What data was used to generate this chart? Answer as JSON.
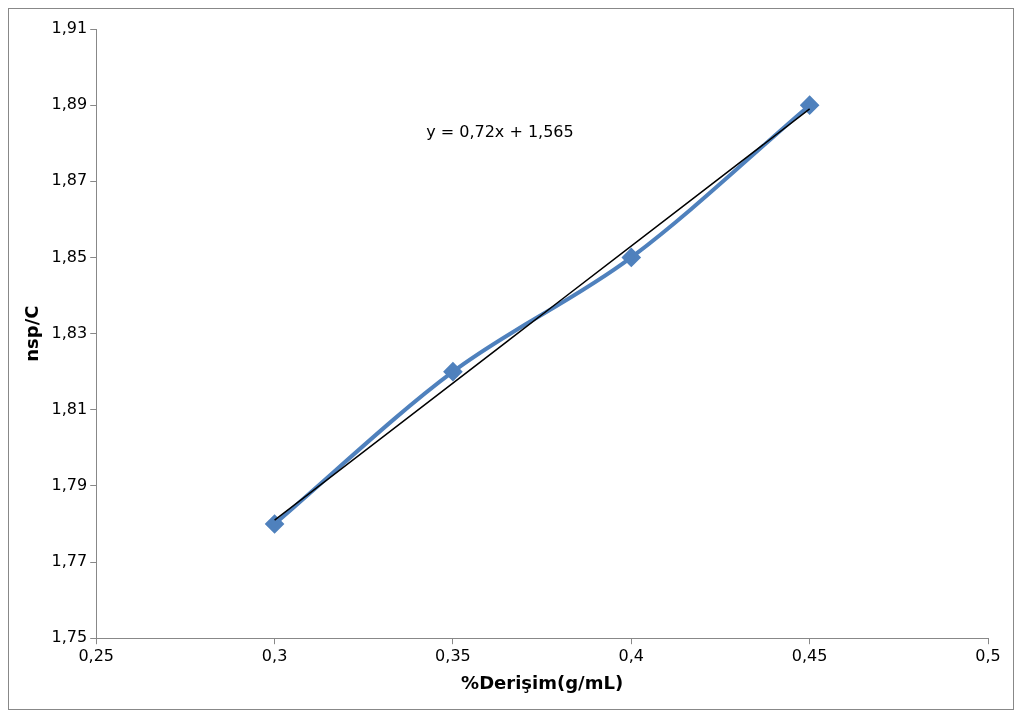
{
  "chart_data": {
    "type": "line",
    "xlabel": "%Derişim(g/mL)",
    "ylabel": "nsp/C",
    "x": [
      0.3,
      0.35,
      0.4,
      0.45
    ],
    "series": [
      {
        "type": "line",
        "color": "#4f81bd",
        "values": [
          1.78,
          1.82,
          1.85,
          1.89
        ],
        "marker": "diamond"
      },
      {
        "type": "line",
        "color": "#000000",
        "x": [
          0.3,
          0.45
        ],
        "values": [
          1.781,
          1.889
        ],
        "marker": "none"
      }
    ],
    "xlim": [
      0.25,
      0.5
    ],
    "xticks": [
      {
        "value": 0.25,
        "label": "0,25"
      },
      {
        "value": 0.3,
        "label": "0,3"
      },
      {
        "value": 0.35,
        "label": "0,35"
      },
      {
        "value": 0.4,
        "label": "0,4"
      },
      {
        "value": 0.45,
        "label": "0,45"
      },
      {
        "value": 0.5,
        "label": "0,5"
      }
    ],
    "ylim": [
      1.75,
      1.91
    ],
    "yticks": [
      {
        "value": 1.75,
        "label": "1,75"
      },
      {
        "value": 1.77,
        "label": "1,77"
      },
      {
        "value": 1.79,
        "label": "1,79"
      },
      {
        "value": 1.81,
        "label": "1,81"
      },
      {
        "value": 1.83,
        "label": "1,83"
      },
      {
        "value": 1.85,
        "label": "1,85"
      },
      {
        "value": 1.87,
        "label": "1,87"
      },
      {
        "value": 1.89,
        "label": "1,89"
      },
      {
        "value": 1.91,
        "label": "1,91"
      }
    ],
    "annotations": [
      "y = 0,72x + 1,565"
    ],
    "grid": false,
    "legend": false
  }
}
